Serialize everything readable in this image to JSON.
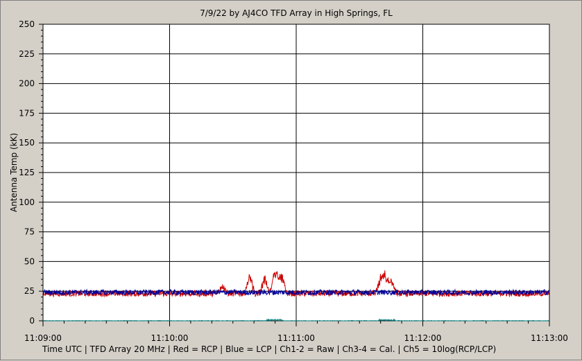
{
  "chart_data": {
    "type": "line",
    "title": "7/9/22  by  AJ4CO TFD Array  in  High Springs, FL",
    "ylabel": "Antenna Temp (kK)",
    "xlabel": "Time UTC | TFD Array 20 MHz | Red = RCP | Blue = LCP | Ch1-2 = Raw | Ch3-4 = Cal. | Ch5 = 10log(RCP/LCP)",
    "ylim": [
      0,
      250
    ],
    "xlim_seconds": [
      0,
      240
    ],
    "y_ticks": [
      "0",
      "25",
      "50",
      "75",
      "100",
      "125",
      "150",
      "175",
      "200",
      "225",
      "250"
    ],
    "x_ticks": [
      "11:09:00",
      "11:10:00",
      "11:11:00",
      "11:12:00",
      "11:13:00"
    ],
    "grid": true,
    "colors": {
      "background": "#ffffff",
      "panel": "#d4d0c8",
      "grid": "#000000",
      "rcp": "#cc0000",
      "lcp": "#000099",
      "ratio": "#008080"
    },
    "series": [
      {
        "name": "RCP",
        "color": "#cc0000",
        "baseline": 23,
        "noise": 2.5,
        "bursts": [
          {
            "t": 85,
            "peak": 32
          },
          {
            "t": 98,
            "peak": 40
          },
          {
            "t": 105,
            "peak": 38
          },
          {
            "t": 110,
            "peak": 48
          },
          {
            "t": 113,
            "peak": 42
          },
          {
            "t": 160,
            "peak": 36
          },
          {
            "t": 162,
            "peak": 40
          },
          {
            "t": 165,
            "peak": 38
          }
        ]
      },
      {
        "name": "LCP",
        "color": "#000099",
        "baseline": 24,
        "noise": 2.2,
        "bursts": []
      },
      {
        "name": "Ch5",
        "color": "#008080",
        "baseline": 0,
        "noise": 0.3,
        "bursts": []
      }
    ]
  }
}
